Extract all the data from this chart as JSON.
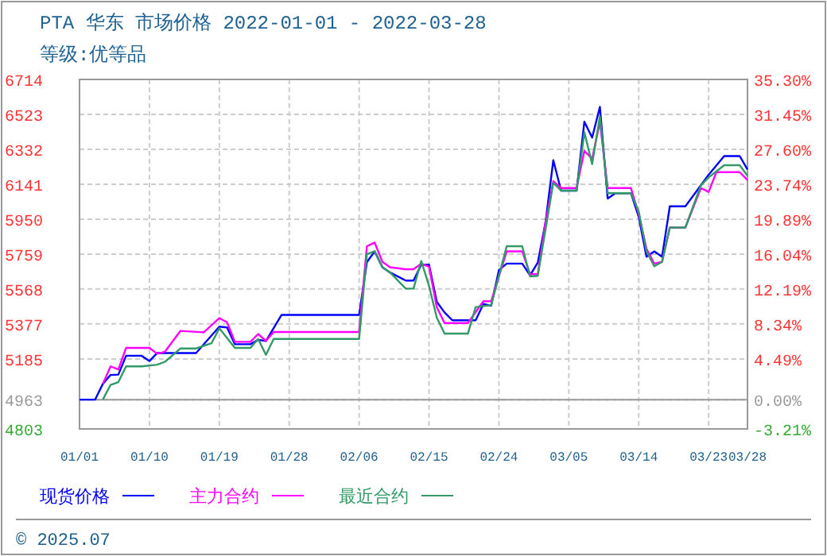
{
  "chart_data": {
    "type": "line",
    "title": "PTA 华东 市场价格 2022-01-01 - 2022-03-28",
    "subtitle": "等级:优等品",
    "xlim": [
      "2022-01-01",
      "2022-03-28"
    ],
    "xticks": [
      {
        "value": "2022-01-01",
        "label": "01/01"
      },
      {
        "value": "2022-01-10",
        "label": "01/10"
      },
      {
        "value": "2022-01-19",
        "label": "01/19"
      },
      {
        "value": "2022-01-28",
        "label": "01/28"
      },
      {
        "value": "2022-02-06",
        "label": "02/06"
      },
      {
        "value": "2022-02-15",
        "label": "02/15"
      },
      {
        "value": "2022-02-24",
        "label": "02/24"
      },
      {
        "value": "2022-03-05",
        "label": "03/05"
      },
      {
        "value": "2022-03-14",
        "label": "03/14"
      },
      {
        "value": "2022-03-23",
        "label": "03/23"
      },
      {
        "value": "2022-03-28",
        "label": "03/28"
      }
    ],
    "ylim": [
      4803,
      6714
    ],
    "yticks": [
      4803,
      4963,
      5185,
      5377,
      5568,
      5759,
      5950,
      6141,
      6332,
      6523,
      6714
    ],
    "y2lim": [
      -3.21,
      35.3
    ],
    "y2ticks": [
      {
        "value": -3.21,
        "label": "-3.21%"
      },
      {
        "value": 0,
        "label": "0.00%"
      },
      {
        "value": 4.49,
        "label": "4.49%"
      },
      {
        "value": 8.34,
        "label": "8.34%"
      },
      {
        "value": 12.19,
        "label": "12.19%"
      },
      {
        "value": 16.04,
        "label": "16.04%"
      },
      {
        "value": 19.89,
        "label": "19.89%"
      },
      {
        "value": 23.74,
        "label": "23.74%"
      },
      {
        "value": 27.6,
        "label": "27.60%"
      },
      {
        "value": 31.45,
        "label": "31.45%"
      },
      {
        "value": 35.3,
        "label": "35.30%"
      }
    ],
    "grid": true,
    "legend": "bottom",
    "ref_lines": [
      {
        "axis": "y",
        "value": 4963,
        "color": "#999999"
      }
    ],
    "annotations": [
      "© 2025.07"
    ],
    "series": [
      {
        "name": "现货价格",
        "color": "#0000ff",
        "x": [
          "2022-01-01",
          "2022-01-03",
          "2022-01-04",
          "2022-01-05",
          "2022-01-06",
          "2022-01-07",
          "2022-01-09",
          "2022-01-10",
          "2022-01-11",
          "2022-01-16",
          "2022-01-19",
          "2022-01-20",
          "2022-01-21",
          "2022-01-23",
          "2022-01-24",
          "2022-01-25",
          "2022-01-27",
          "2022-02-06",
          "2022-02-07",
          "2022-02-08",
          "2022-02-09",
          "2022-02-10",
          "2022-02-12",
          "2022-02-13",
          "2022-02-14",
          "2022-02-15",
          "2022-02-16",
          "2022-02-17",
          "2022-02-18",
          "2022-02-21",
          "2022-02-22",
          "2022-02-23",
          "2022-02-24",
          "2022-02-25",
          "2022-02-27",
          "2022-02-28",
          "2022-03-01",
          "2022-03-02",
          "2022-03-03",
          "2022-03-04",
          "2022-03-06",
          "2022-03-07",
          "2022-03-08",
          "2022-03-09",
          "2022-03-10",
          "2022-03-11",
          "2022-03-13",
          "2022-03-14",
          "2022-03-15",
          "2022-03-16",
          "2022-03-17",
          "2022-03-18",
          "2022-03-20",
          "2022-03-22",
          "2022-03-23",
          "2022-03-25",
          "2022-03-27",
          "2022-03-28"
        ],
        "values": [
          4963,
          4963,
          5049,
          5098,
          5100,
          5203,
          5203,
          5174,
          5218,
          5218,
          5362,
          5358,
          5266,
          5266,
          5290,
          5284,
          5426,
          5426,
          5715,
          5774,
          5687,
          5658,
          5614,
          5614,
          5701,
          5701,
          5498,
          5440,
          5397,
          5397,
          5486,
          5477,
          5672,
          5707,
          5707,
          5643,
          5712,
          5933,
          6272,
          6106,
          6106,
          6483,
          6396,
          6564,
          6063,
          6092,
          6092,
          5962,
          5744,
          5774,
          5744,
          6020,
          6020,
          6135,
          6193,
          6295,
          6295,
          6222
        ]
      },
      {
        "name": "主力合约",
        "color": "#ff00ff",
        "x": [
          "2022-01-04",
          "2022-01-05",
          "2022-01-06",
          "2022-01-07",
          "2022-01-10",
          "2022-01-11",
          "2022-01-12",
          "2022-01-14",
          "2022-01-17",
          "2022-01-19",
          "2022-01-20",
          "2022-01-21",
          "2022-01-23",
          "2022-01-24",
          "2022-01-25",
          "2022-01-26",
          "2022-02-06",
          "2022-02-07",
          "2022-02-08",
          "2022-02-09",
          "2022-02-10",
          "2022-02-12",
          "2022-02-13",
          "2022-02-14",
          "2022-02-15",
          "2022-02-16",
          "2022-02-17",
          "2022-02-20",
          "2022-02-22",
          "2022-02-23",
          "2022-02-25",
          "2022-02-27",
          "2022-02-28",
          "2022-03-01",
          "2022-03-02",
          "2022-03-03",
          "2022-03-04",
          "2022-03-06",
          "2022-03-07",
          "2022-03-08",
          "2022-03-09",
          "2022-03-10",
          "2022-03-13",
          "2022-03-14",
          "2022-03-15",
          "2022-03-16",
          "2022-03-17",
          "2022-03-18",
          "2022-03-20",
          "2022-03-22",
          "2022-03-23",
          "2022-03-24",
          "2022-03-27",
          "2022-03-28"
        ],
        "values": [
          5049,
          5145,
          5128,
          5246,
          5246,
          5214,
          5225,
          5339,
          5331,
          5409,
          5386,
          5279,
          5279,
          5322,
          5284,
          5333,
          5333,
          5802,
          5822,
          5716,
          5687,
          5676,
          5676,
          5707,
          5690,
          5469,
          5382,
          5382,
          5501,
          5501,
          5774,
          5774,
          5649,
          5649,
          5933,
          6157,
          6120,
          6120,
          6323,
          6280,
          6483,
          6120,
          6120,
          5977,
          5788,
          5707,
          5716,
          5904,
          5904,
          6120,
          6099,
          6207,
          6207,
          6164
        ]
      },
      {
        "name": "最近合约",
        "color": "#339966",
        "x": [
          "2022-01-04",
          "2022-01-05",
          "2022-01-06",
          "2022-01-07",
          "2022-01-09",
          "2022-01-11",
          "2022-01-12",
          "2022-01-14",
          "2022-01-16",
          "2022-01-18",
          "2022-01-19",
          "2022-01-21",
          "2022-01-23",
          "2022-01-24",
          "2022-01-25",
          "2022-01-26",
          "2022-02-06",
          "2022-02-07",
          "2022-02-08",
          "2022-02-09",
          "2022-02-10",
          "2022-02-12",
          "2022-02-13",
          "2022-02-14",
          "2022-02-15",
          "2022-02-16",
          "2022-02-17",
          "2022-02-20",
          "2022-02-21",
          "2022-02-23",
          "2022-02-25",
          "2022-02-27",
          "2022-02-28",
          "2022-03-01",
          "2022-03-03",
          "2022-03-04",
          "2022-03-06",
          "2022-03-07",
          "2022-03-08",
          "2022-03-09",
          "2022-03-10",
          "2022-03-13",
          "2022-03-14",
          "2022-03-15",
          "2022-03-16",
          "2022-03-17",
          "2022-03-18",
          "2022-03-20",
          "2022-03-22",
          "2022-03-23",
          "2022-03-25",
          "2022-03-27",
          "2022-03-28"
        ],
        "values": [
          4963,
          5044,
          5059,
          5145,
          5145,
          5154,
          5170,
          5243,
          5243,
          5272,
          5353,
          5246,
          5246,
          5295,
          5208,
          5295,
          5295,
          5759,
          5774,
          5687,
          5658,
          5570,
          5570,
          5721,
          5585,
          5411,
          5324,
          5324,
          5469,
          5480,
          5802,
          5802,
          5637,
          5640,
          6149,
          6106,
          6106,
          6425,
          6251,
          6512,
          6092,
          6092,
          5991,
          5774,
          5692,
          5716,
          5904,
          5904,
          6135,
          6178,
          6245,
          6245,
          6187
        ]
      }
    ]
  }
}
